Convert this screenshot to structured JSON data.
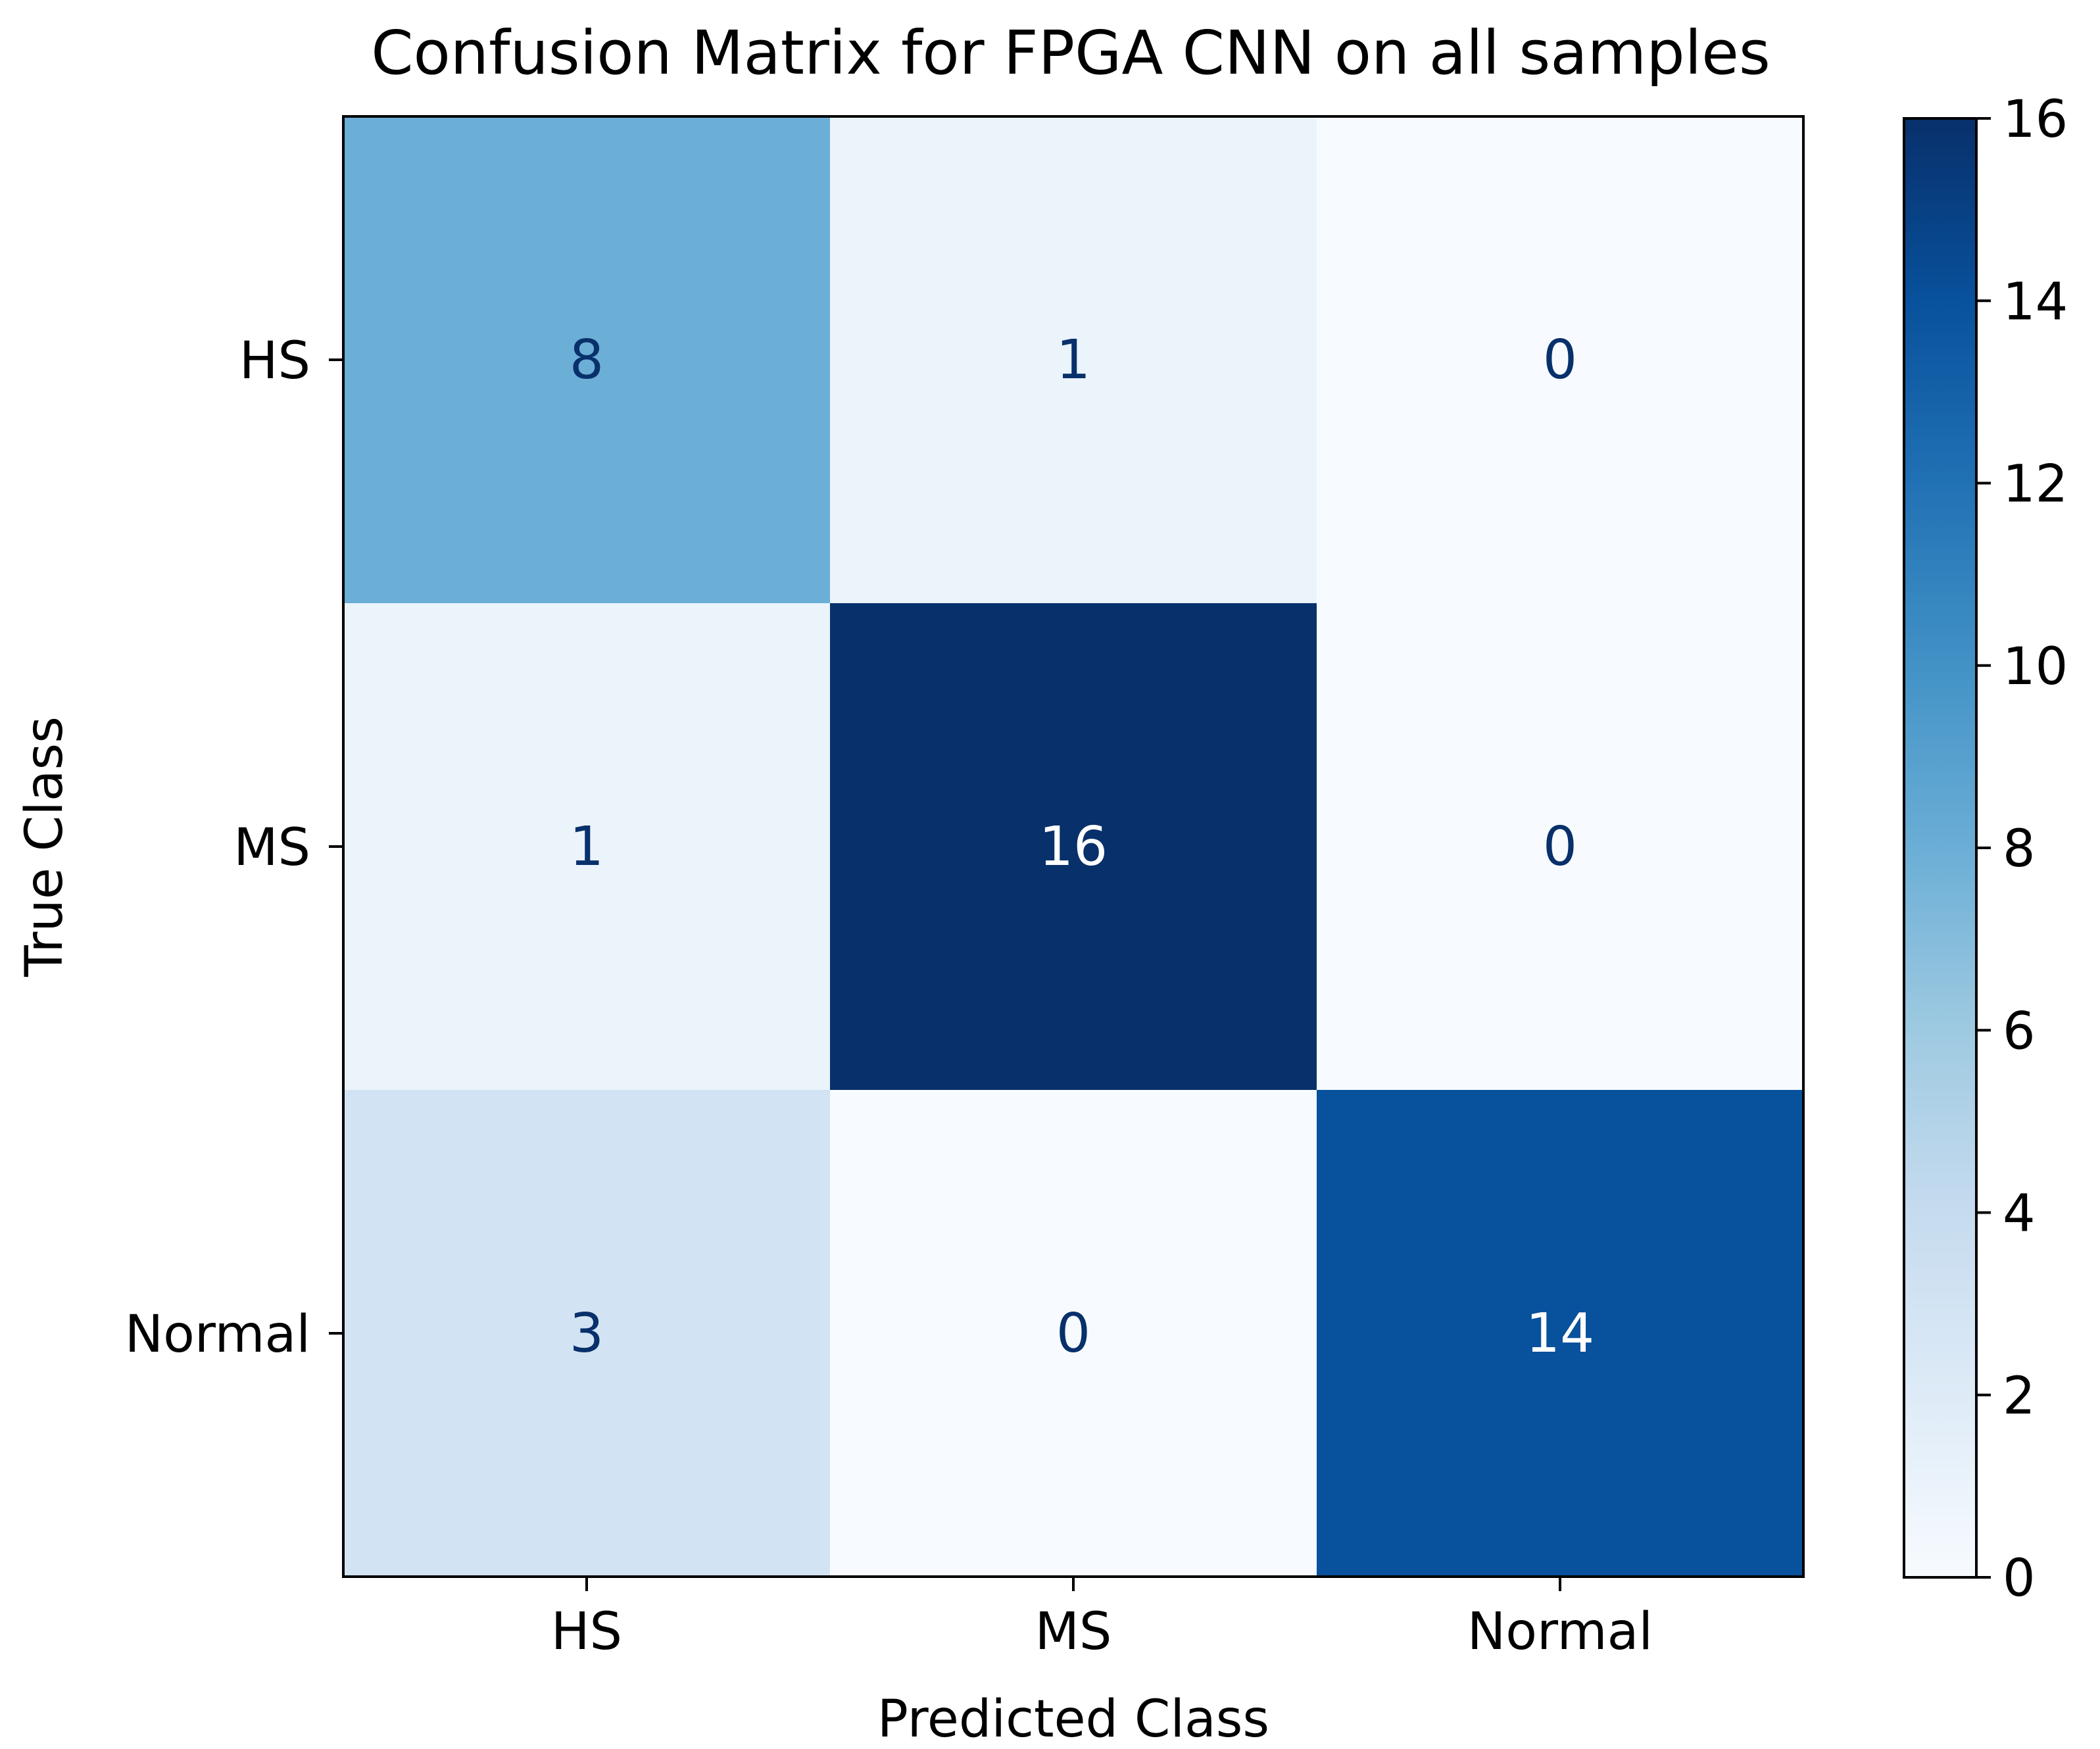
{
  "chart_data": {
    "type": "heatmap",
    "title": "Confusion Matrix for FPGA CNN on all samples",
    "xlabel": "Predicted Class",
    "ylabel": "True Class",
    "x_categories": [
      "HS",
      "MS",
      "Normal"
    ],
    "y_categories": [
      "HS",
      "MS",
      "Normal"
    ],
    "matrix": [
      [
        8,
        1,
        0
      ],
      [
        1,
        16,
        0
      ],
      [
        3,
        0,
        14
      ]
    ],
    "colormap": "Blues",
    "colorbar": {
      "range": [
        0,
        16
      ],
      "ticks": [
        0,
        2,
        4,
        6,
        8,
        10,
        12,
        14,
        16
      ]
    },
    "text_colors": {
      "on_dark": "#ffffff",
      "on_light": "#08306b"
    }
  }
}
